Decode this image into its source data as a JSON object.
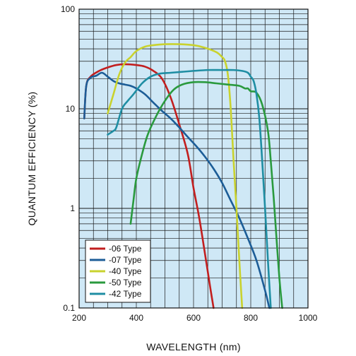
{
  "chart_data": {
    "type": "line",
    "xlabel": "WAVELENGTH (nm)",
    "ylabel": "QUANTUM EFFICIENCY (%)",
    "xlim": [
      200,
      1000
    ],
    "ylim": [
      0.1,
      100
    ],
    "y_scale": "log",
    "grid": true,
    "legend_position": "bottom-left",
    "x_ticks": [
      "200",
      "400",
      "600",
      "800",
      "1000"
    ],
    "y_ticks": [
      "0.1",
      "1",
      "10",
      "100"
    ],
    "series": [
      {
        "name": "-06 Type",
        "color": "#c21f1f",
        "points": [
          [
            218,
            8
          ],
          [
            225,
            17
          ],
          [
            240,
            21
          ],
          [
            270,
            24
          ],
          [
            300,
            26
          ],
          [
            330,
            27.5
          ],
          [
            360,
            28
          ],
          [
            400,
            27.5
          ],
          [
            430,
            26.5
          ],
          [
            460,
            24
          ],
          [
            490,
            20
          ],
          [
            520,
            13
          ],
          [
            550,
            7
          ],
          [
            580,
            3.5
          ],
          [
            600,
            1.6
          ],
          [
            620,
            0.8
          ],
          [
            640,
            0.35
          ],
          [
            660,
            0.15
          ],
          [
            670,
            0.1
          ]
        ]
      },
      {
        "name": "-07 Type",
        "color": "#1c5d97",
        "points": [
          [
            218,
            8
          ],
          [
            225,
            17
          ],
          [
            240,
            20.5
          ],
          [
            260,
            21.5
          ],
          [
            280,
            23
          ],
          [
            300,
            21
          ],
          [
            320,
            19
          ],
          [
            340,
            18
          ],
          [
            360,
            17.5
          ],
          [
            380,
            17
          ],
          [
            400,
            16
          ],
          [
            430,
            14
          ],
          [
            460,
            11.5
          ],
          [
            490,
            9.5
          ],
          [
            520,
            8
          ],
          [
            550,
            6.5
          ],
          [
            580,
            5.2
          ],
          [
            610,
            4.2
          ],
          [
            640,
            3.3
          ],
          [
            670,
            2.5
          ],
          [
            700,
            1.8
          ],
          [
            730,
            1.2
          ],
          [
            760,
            0.8
          ],
          [
            790,
            0.5
          ],
          [
            820,
            0.3
          ],
          [
            850,
            0.15
          ],
          [
            865,
            0.1
          ]
        ]
      },
      {
        "name": "-40 Type",
        "color": "#c9d22e",
        "points": [
          [
            300,
            9
          ],
          [
            320,
            14
          ],
          [
            340,
            22
          ],
          [
            360,
            29
          ],
          [
            380,
            33
          ],
          [
            400,
            38
          ],
          [
            430,
            42
          ],
          [
            460,
            43.5
          ],
          [
            500,
            44.5
          ],
          [
            550,
            44.5
          ],
          [
            600,
            43.5
          ],
          [
            640,
            41
          ],
          [
            680,
            37
          ],
          [
            700,
            33
          ],
          [
            710,
            30
          ],
          [
            720,
            22
          ],
          [
            730,
            10
          ],
          [
            740,
            3
          ],
          [
            750,
            1
          ],
          [
            760,
            0.3
          ],
          [
            770,
            0.1
          ]
        ]
      },
      {
        "name": "-50 Type",
        "color": "#2a9a3e",
        "points": [
          [
            380,
            0.7
          ],
          [
            390,
            1.2
          ],
          [
            400,
            2
          ],
          [
            420,
            3.5
          ],
          [
            440,
            5.5
          ],
          [
            470,
            8.5
          ],
          [
            500,
            12
          ],
          [
            530,
            15.5
          ],
          [
            560,
            17.5
          ],
          [
            600,
            18.5
          ],
          [
            640,
            18.5
          ],
          [
            680,
            18
          ],
          [
            720,
            17.5
          ],
          [
            760,
            17
          ],
          [
            780,
            16
          ],
          [
            790,
            16
          ],
          [
            800,
            15
          ],
          [
            820,
            14.5
          ],
          [
            840,
            11
          ],
          [
            860,
            6
          ],
          [
            870,
            3
          ],
          [
            880,
            1.3
          ],
          [
            890,
            0.5
          ],
          [
            900,
            0.2
          ],
          [
            910,
            0.1
          ]
        ]
      },
      {
        "name": "-42 Type",
        "color": "#1f8ea3",
        "points": [
          [
            300,
            5.5
          ],
          [
            320,
            6
          ],
          [
            330,
            6.5
          ],
          [
            350,
            10
          ],
          [
            370,
            12
          ],
          [
            390,
            14
          ],
          [
            420,
            18
          ],
          [
            450,
            21
          ],
          [
            480,
            22.5
          ],
          [
            520,
            23
          ],
          [
            560,
            23.5
          ],
          [
            600,
            24
          ],
          [
            650,
            24.5
          ],
          [
            700,
            24.5
          ],
          [
            740,
            24.5
          ],
          [
            770,
            24
          ],
          [
            790,
            23
          ],
          [
            800,
            21
          ],
          [
            810,
            19
          ],
          [
            820,
            14
          ],
          [
            830,
            8
          ],
          [
            840,
            3
          ],
          [
            850,
            1
          ],
          [
            860,
            0.3
          ],
          [
            870,
            0.1
          ]
        ]
      }
    ]
  }
}
